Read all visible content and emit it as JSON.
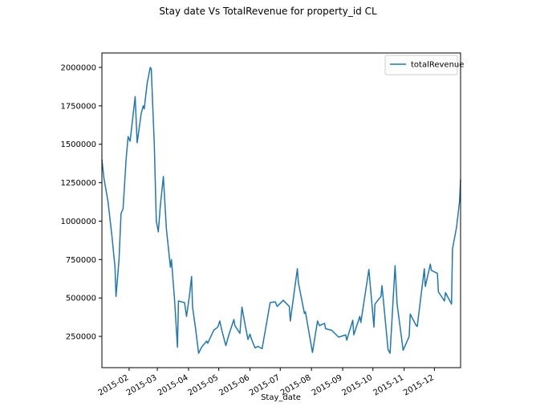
{
  "chart_data": {
    "type": "line",
    "title": "Stay date Vs TotalRevenue for property_id CL",
    "x_label": "Stay_date",
    "x": [
      5,
      7,
      11,
      15,
      18,
      19,
      22,
      24,
      26,
      29,
      31,
      33,
      38,
      40,
      44,
      46,
      47,
      50,
      53,
      54,
      57,
      59,
      61,
      63,
      66,
      69,
      73,
      74,
      77,
      80,
      81,
      87,
      89,
      92,
      94,
      95,
      98,
      101,
      104,
      109,
      110,
      116,
      120,
      122,
      124,
      128,
      131,
      136,
      137,
      142,
      144,
      147,
      150,
      152,
      153,
      157,
      160,
      164,
      172,
      177,
      179,
      185,
      191,
      192,
      199,
      200,
      206,
      207,
      214,
      219,
      221,
      226,
      227,
      233,
      240,
      247,
      248,
      254,
      255,
      261,
      262,
      270,
      275,
      276,
      282,
      283,
      289,
      291,
      296,
      298,
      304,
      310,
      311,
      317,
      318,
      325,
      326,
      331,
      332,
      338,
      339,
      345,
      346,
      352,
      353,
      357,
      360,
      361
    ],
    "series": [
      {
        "name": "totalRevenue",
        "color": "#1f77b4",
        "values": [
          1400000,
          1280000,
          1130000,
          900000,
          700000,
          510000,
          750000,
          1050000,
          1080000,
          1400000,
          1550000,
          1520000,
          1810000,
          1510000,
          1700000,
          1750000,
          1730000,
          1900000,
          2000000,
          1990000,
          1500000,
          1000000,
          930000,
          1100000,
          1290000,
          950000,
          700000,
          750000,
          500000,
          180000,
          480000,
          470000,
          380000,
          520000,
          640000,
          440000,
          300000,
          140000,
          180000,
          220000,
          205000,
          290000,
          310000,
          350000,
          290000,
          190000,
          260000,
          360000,
          320000,
          270000,
          440000,
          330000,
          230000,
          265000,
          240000,
          175000,
          185000,
          170000,
          470000,
          475000,
          445000,
          485000,
          445000,
          350000,
          690000,
          600000,
          400000,
          410000,
          145000,
          350000,
          320000,
          335000,
          300000,
          290000,
          245000,
          260000,
          225000,
          355000,
          260000,
          380000,
          340000,
          685000,
          310000,
          460000,
          510000,
          580000,
          165000,
          140000,
          710000,
          460000,
          160000,
          250000,
          395000,
          320000,
          315000,
          690000,
          575000,
          720000,
          680000,
          660000,
          540000,
          480000,
          535000,
          460000,
          820000,
          960000,
          1130000,
          1270000
        ]
      }
    ],
    "xlim": [
      5,
      361
    ],
    "xticks": [
      {
        "value": 32,
        "label": "2015-02"
      },
      {
        "value": 60,
        "label": "2015-03"
      },
      {
        "value": 91,
        "label": "2015-04"
      },
      {
        "value": 121,
        "label": "2015-05"
      },
      {
        "value": 152,
        "label": "2015-06"
      },
      {
        "value": 182,
        "label": "2015-07"
      },
      {
        "value": 213,
        "label": "2015-08"
      },
      {
        "value": 244,
        "label": "2015-09"
      },
      {
        "value": 274,
        "label": "2015-10"
      },
      {
        "value": 305,
        "label": "2015-11"
      },
      {
        "value": 335,
        "label": "2015-12"
      }
    ],
    "ylim": [
      46500,
      2094000
    ],
    "yticks": [
      250000,
      500000,
      750000,
      1000000,
      1250000,
      1500000,
      1750000,
      2000000
    ],
    "legend": "upper right",
    "grid": false
  }
}
